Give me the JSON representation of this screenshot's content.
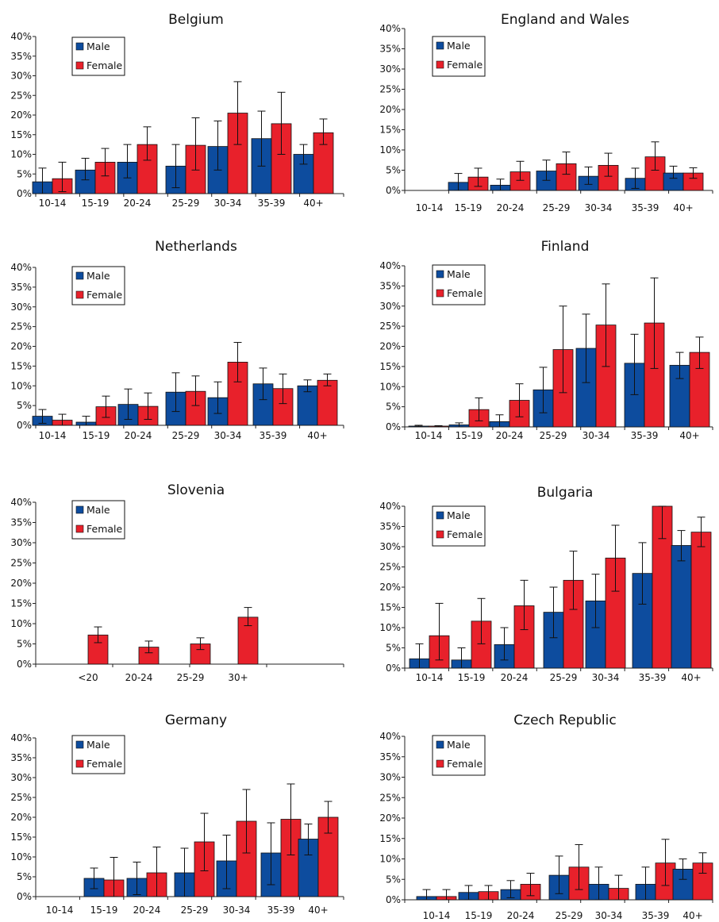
{
  "colors": {
    "male": "#0D4C9E",
    "female": "#E8212B",
    "axis": "#222222",
    "error": "#111111"
  },
  "legend": {
    "male_label": "Male",
    "female_label": "Female"
  },
  "chart_data": [
    {
      "type": "bar",
      "title": "Belgium",
      "categories": [
        "10-14",
        "15-19",
        "20-24",
        "25-29",
        "30-34",
        "35-39",
        "40+"
      ],
      "y_ticks": [
        "40%",
        "35%",
        "30%",
        "25%",
        "20%",
        "15%",
        "10%",
        "5%",
        "0%"
      ],
      "ylim": [
        0,
        40
      ],
      "legend_position": "top-left",
      "series": [
        {
          "name": "Male",
          "values": [
            3,
            6,
            8,
            7,
            12,
            14,
            10
          ],
          "err_low": [
            0,
            3.5,
            4,
            1.5,
            6,
            7,
            7.5
          ],
          "err_high": [
            6.5,
            9,
            12.5,
            12.5,
            18.5,
            21,
            12.5
          ]
        },
        {
          "name": "Female",
          "values": [
            3.8,
            8,
            12.5,
            12.3,
            20.5,
            17.8,
            15.5
          ],
          "err_low": [
            0.5,
            4.5,
            8.5,
            6,
            12.5,
            10,
            12.5
          ],
          "err_high": [
            8,
            11.5,
            17,
            19.3,
            28.5,
            25.8,
            19
          ]
        }
      ]
    },
    {
      "type": "bar",
      "title": "England and Wales",
      "categories": [
        "10-14",
        "15-19",
        "20-24",
        "25-29",
        "30-34",
        "35-39",
        "40+"
      ],
      "y_ticks": [
        "40%",
        "35%",
        "30%",
        "25%",
        "20%",
        "15%",
        "10%",
        "5%",
        "0%"
      ],
      "ylim": [
        0,
        40
      ],
      "legend_position": "top-left",
      "series": [
        {
          "name": "Male",
          "values": [
            0,
            2,
            1.3,
            4.8,
            3.5,
            3,
            4.3
          ],
          "err_low": [
            0,
            0,
            0,
            2.5,
            1.5,
            0.5,
            3
          ],
          "err_high": [
            0,
            4.2,
            2.8,
            7.5,
            5.8,
            5.5,
            6
          ]
        },
        {
          "name": "Female",
          "values": [
            0,
            3.3,
            4.6,
            6.6,
            6.2,
            8.3,
            4.3
          ],
          "err_low": [
            0,
            1,
            2.5,
            4,
            3.5,
            5,
            3
          ],
          "err_high": [
            0,
            5.5,
            7.2,
            9.5,
            9.2,
            12,
            5.6
          ]
        }
      ]
    },
    {
      "type": "bar",
      "title": "Netherlands",
      "categories": [
        "10-14",
        "15-19",
        "20-24",
        "25-29",
        "30-34",
        "35-39",
        "40+"
      ],
      "y_ticks": [
        "40%",
        "35%",
        "30%",
        "25%",
        "20%",
        "15%",
        "10%",
        "5%",
        "0%"
      ],
      "ylim": [
        0,
        40
      ],
      "legend_position": "top-left",
      "series": [
        {
          "name": "Male",
          "values": [
            2.3,
            0.8,
            5.3,
            8.4,
            7,
            10.5,
            10
          ],
          "err_low": [
            0.5,
            0,
            1.5,
            3.5,
            3,
            6.5,
            8.5
          ],
          "err_high": [
            4,
            2.3,
            9.2,
            13.3,
            11,
            14.5,
            11.5
          ]
        },
        {
          "name": "Female",
          "values": [
            1.3,
            4.7,
            4.8,
            8.6,
            16,
            9.3,
            11.4
          ],
          "err_low": [
            0,
            2,
            1.5,
            5,
            11,
            5.5,
            10
          ],
          "err_high": [
            2.8,
            7.4,
            8.2,
            12.5,
            21,
            13,
            13
          ]
        }
      ]
    },
    {
      "type": "bar",
      "title": "Finland",
      "categories": [
        "10-14",
        "15-19",
        "20-24",
        "25-29",
        "30-34",
        "35-39",
        "40+"
      ],
      "y_ticks": [
        "40%",
        "35%",
        "30%",
        "25%",
        "20%",
        "15%",
        "10%",
        "5%",
        "0%"
      ],
      "ylim": [
        0,
        40
      ],
      "legend_position": "top-left",
      "series": [
        {
          "name": "Male",
          "values": [
            0.2,
            0.5,
            1.3,
            9.2,
            19.5,
            15.8,
            15.3
          ],
          "err_low": [
            0,
            0,
            0,
            3.5,
            11,
            8,
            12
          ],
          "err_high": [
            0.4,
            1,
            3,
            14.8,
            28,
            23,
            18.5
          ]
        },
        {
          "name": "Female",
          "values": [
            0.2,
            4.3,
            6.6,
            19.2,
            25.3,
            25.8,
            18.5
          ],
          "err_low": [
            0,
            1.5,
            2.5,
            8.5,
            15,
            14.5,
            14.5
          ],
          "err_high": [
            0.3,
            7.2,
            10.7,
            30,
            35.5,
            37,
            22.3
          ]
        }
      ]
    },
    {
      "type": "bar",
      "title": "Slovenia",
      "categories": [
        "<20",
        "20-24",
        "25-29",
        "30+"
      ],
      "y_ticks": [
        "40%",
        "35%",
        "30%",
        "25%",
        "20%",
        "15%",
        "10%",
        "5%",
        "0%"
      ],
      "ylim": [
        0,
        40
      ],
      "legend_position": "top-left",
      "series": [
        {
          "name": "Male",
          "values": [
            0,
            0,
            0,
            0
          ]
        },
        {
          "name": "Female",
          "values": [
            7.2,
            4.2,
            5,
            11.6
          ],
          "err_low": [
            5.3,
            2.8,
            3.6,
            9.5
          ],
          "err_high": [
            9.2,
            5.7,
            6.5,
            14
          ]
        }
      ]
    },
    {
      "type": "bar",
      "title": "Bulgaria",
      "categories": [
        "10-14",
        "15-19",
        "20-24",
        "25-29",
        "30-34",
        "35-39",
        "40+"
      ],
      "y_ticks": [
        "40%",
        "35%",
        "30%",
        "25%",
        "20%",
        "15%",
        "10%",
        "5%",
        "0%"
      ],
      "ylim": [
        0,
        40
      ],
      "legend_position": "top-left",
      "series": [
        {
          "name": "Male",
          "values": [
            2.3,
            2,
            5.8,
            13.8,
            16.6,
            23.4,
            30.3
          ],
          "err_low": [
            0,
            0,
            2,
            7.5,
            10,
            15.8,
            26.5
          ],
          "err_high": [
            6,
            5,
            10,
            20,
            23.2,
            31,
            34
          ]
        },
        {
          "name": "Female",
          "values": [
            8,
            11.6,
            15.4,
            21.7,
            27.2,
            40.2,
            33.6
          ],
          "err_low": [
            2,
            6,
            9.5,
            14.5,
            19,
            32,
            30
          ],
          "err_high": [
            16,
            17.2,
            21.7,
            28.9,
            35.3,
            40.5,
            37.3
          ]
        }
      ]
    },
    {
      "type": "bar",
      "title": "Germany",
      "categories": [
        "10-14",
        "15-19",
        "20-24",
        "25-29",
        "30-34",
        "35-39",
        "40+"
      ],
      "y_ticks": [
        "40%",
        "35%",
        "30%",
        "25%",
        "20%",
        "15%",
        "10%",
        "5%",
        "0%"
      ],
      "ylim": [
        0,
        40
      ],
      "legend_position": "top-left",
      "series": [
        {
          "name": "Male",
          "values": [
            0,
            4.6,
            4.6,
            6,
            9,
            11,
            14.5
          ],
          "err_low": [
            0,
            2,
            0.5,
            0,
            2,
            3,
            10.5
          ],
          "err_high": [
            0,
            7.2,
            8.7,
            12.2,
            15.5,
            18.6,
            18.3
          ]
        },
        {
          "name": "Female",
          "values": [
            0,
            4.2,
            6,
            13.8,
            19,
            19.5,
            20
          ],
          "err_low": [
            0,
            0,
            0,
            6.5,
            11,
            10.5,
            16
          ],
          "err_high": [
            0,
            9.9,
            12.5,
            21,
            27,
            28.4,
            24
          ]
        }
      ]
    },
    {
      "type": "bar",
      "title": "Czech Republic",
      "categories": [
        "10-14",
        "15-19",
        "20-24",
        "25-29",
        "30-34",
        "35-39",
        "40+"
      ],
      "y_ticks": [
        "40%",
        "35%",
        "30%",
        "25%",
        "20%",
        "15%",
        "10%",
        "5%",
        "0%"
      ],
      "ylim": [
        0,
        40
      ],
      "legend_position": "top-left",
      "series": [
        {
          "name": "Male",
          "values": [
            0.8,
            1.8,
            2.5,
            6,
            3.8,
            3.8,
            7.5
          ],
          "err_low": [
            0,
            0,
            0.5,
            1.5,
            0,
            0,
            5
          ],
          "err_high": [
            2.5,
            3.5,
            4.7,
            10.7,
            8,
            8,
            10
          ]
        },
        {
          "name": "Female",
          "values": [
            0.8,
            2,
            3.8,
            8,
            2.8,
            9,
            9
          ],
          "err_low": [
            0,
            0,
            1,
            2.5,
            0,
            3.5,
            6.5
          ],
          "err_high": [
            2.5,
            3.5,
            6.5,
            13.5,
            6,
            14.8,
            11.5
          ]
        }
      ]
    }
  ]
}
